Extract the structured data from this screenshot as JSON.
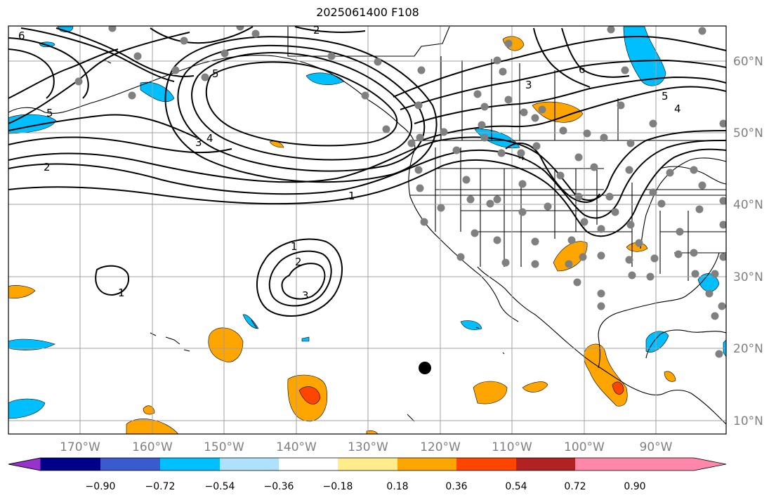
{
  "title": "2025061400 F108",
  "map": {
    "lat_labels": [
      "60°N",
      "50°N",
      "40°N",
      "30°N",
      "20°N",
      "10°N"
    ],
    "lon_labels": [
      "170°W",
      "160°W",
      "150°W",
      "140°W",
      "130°W",
      "120°W",
      "110°W",
      "100°W",
      "90°W"
    ],
    "contour_labels": [
      "6",
      "2",
      "5",
      "5",
      "4",
      "3",
      "2",
      "1",
      "6",
      "3",
      "5",
      "4",
      "4",
      "1",
      "2",
      "3",
      "1"
    ]
  },
  "colorbar": {
    "colors": [
      "#9932cc",
      "#00008b",
      "#3a5bd0",
      "#00bfff",
      "#aee1fb",
      "#ffffff",
      "#ffec8b",
      "#ffa500",
      "#ff4500",
      "#b22222",
      "#ff88aa"
    ],
    "tick_labels": [
      "−0.90",
      "−0.72",
      "−0.54",
      "−0.36",
      "−0.18",
      "0.18",
      "0.36",
      "0.54",
      "0.72",
      "0.90"
    ]
  }
}
